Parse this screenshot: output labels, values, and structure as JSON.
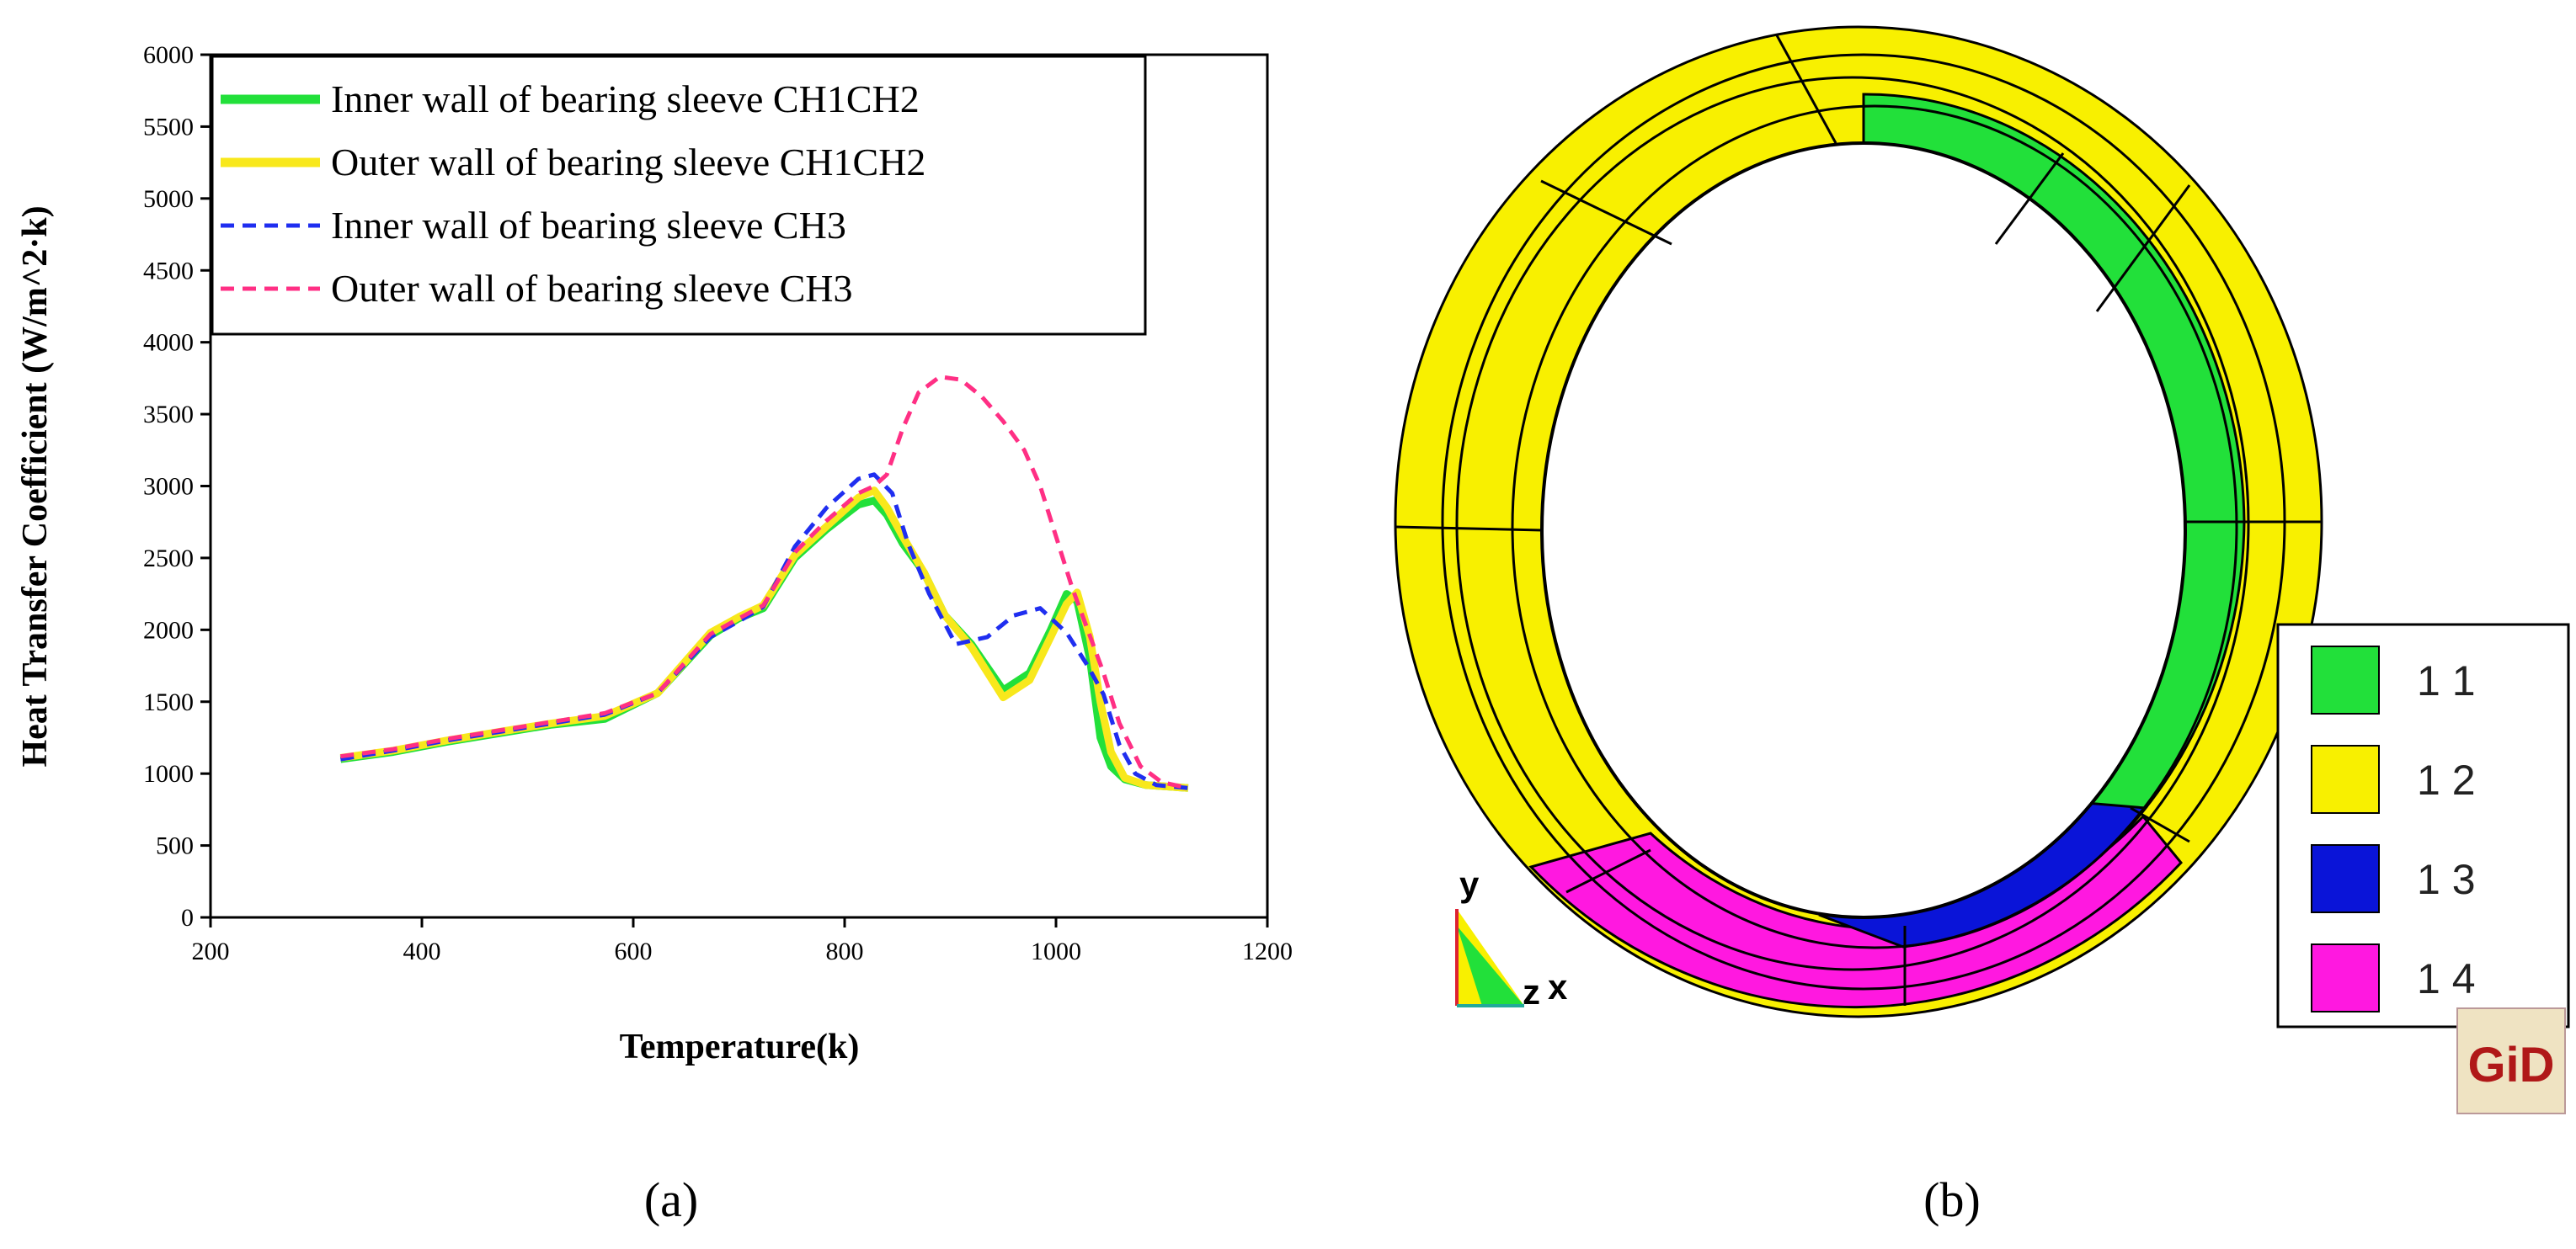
{
  "chart_data": [
    {
      "type": "line",
      "panel": "a",
      "xlabel": "Temperature(k)",
      "ylabel": "Heat Transfer Coefficient (W/m^2·k)",
      "xlim": [
        200,
        1200
      ],
      "ylim": [
        0,
        6000
      ],
      "xticks": [
        "200",
        "400",
        "600",
        "800",
        "1000",
        "1200"
      ],
      "yticks": [
        "0",
        "500",
        "1000",
        "1500",
        "2000",
        "2500",
        "3000",
        "3500",
        "4000",
        "4500",
        "5000",
        "5500",
        "6000"
      ],
      "legend_position": "top-left",
      "series": [
        {
          "name": "Inner wall of bearing sleeve CH1CH2",
          "color": "#22e03a",
          "style": "solid",
          "x": [
            323,
            373,
            423,
            473,
            523,
            573,
            623,
            673,
            700,
            723,
            753,
            783,
            813,
            828,
            840,
            855,
            875,
            895,
            920,
            950,
            975,
            995,
            1010,
            1020,
            1032,
            1042,
            1052,
            1065,
            1085,
            1105,
            1125
          ],
          "y": [
            1100,
            1150,
            1220,
            1280,
            1340,
            1380,
            1560,
            1960,
            2080,
            2150,
            2500,
            2700,
            2870,
            2900,
            2800,
            2600,
            2400,
            2100,
            1900,
            1580,
            1700,
            2000,
            2250,
            2200,
            1800,
            1250,
            1050,
            960,
            920,
            910,
            900
          ]
        },
        {
          "name": "Outer wall of bearing sleeve CH1CH2",
          "color": "#f8e81c",
          "style": "solid",
          "x": [
            323,
            373,
            423,
            473,
            523,
            573,
            623,
            673,
            700,
            723,
            753,
            783,
            813,
            828,
            840,
            855,
            875,
            895,
            920,
            950,
            975,
            995,
            1010,
            1020,
            1032,
            1042,
            1052,
            1065,
            1085,
            1105,
            1125
          ],
          "y": [
            1110,
            1160,
            1230,
            1290,
            1350,
            1400,
            1560,
            1980,
            2090,
            2170,
            2520,
            2720,
            2920,
            2970,
            2850,
            2650,
            2400,
            2100,
            1880,
            1530,
            1650,
            1950,
            2180,
            2260,
            1950,
            1500,
            1150,
            970,
            920,
            910,
            900
          ]
        },
        {
          "name": "Inner wall of bearing sleeve CH3",
          "color": "#1f2ef0",
          "style": "dashed",
          "x": [
            323,
            373,
            423,
            473,
            523,
            573,
            623,
            673,
            700,
            723,
            753,
            783,
            813,
            828,
            845,
            860,
            880,
            905,
            935,
            960,
            985,
            1010,
            1030,
            1045,
            1060,
            1075,
            1095,
            1125
          ],
          "y": [
            1100,
            1160,
            1230,
            1290,
            1350,
            1410,
            1560,
            1950,
            2060,
            2160,
            2580,
            2850,
            3050,
            3080,
            2950,
            2600,
            2250,
            1900,
            1950,
            2100,
            2150,
            1980,
            1750,
            1550,
            1200,
            1000,
            920,
            900
          ]
        },
        {
          "name": "Outer wall of bearing sleeve CH3",
          "color": "#ff2f84",
          "style": "dashed",
          "x": [
            323,
            373,
            423,
            473,
            523,
            573,
            623,
            673,
            700,
            723,
            753,
            783,
            813,
            828,
            840,
            855,
            870,
            890,
            910,
            930,
            950,
            970,
            985,
            1000,
            1015,
            1030,
            1045,
            1060,
            1080,
            1100,
            1125
          ],
          "y": [
            1120,
            1170,
            1240,
            1300,
            1360,
            1420,
            1560,
            1970,
            2080,
            2170,
            2540,
            2760,
            2950,
            3000,
            3080,
            3400,
            3650,
            3760,
            3740,
            3620,
            3450,
            3250,
            3000,
            2650,
            2300,
            2000,
            1700,
            1350,
            1050,
            940,
            900
          ]
        }
      ]
    }
  ],
  "figure": {
    "panel_a_label": "(a)",
    "panel_b_label": "(b)",
    "axes_triad": {
      "y": "y",
      "z": "z",
      "x": "x"
    },
    "ring_legend": [
      {
        "label": "1 1",
        "color": "#22e03a"
      },
      {
        "label": "1 2",
        "color": "#f8f000"
      },
      {
        "label": "1 3",
        "color": "#0a14d8"
      },
      {
        "label": "1 4",
        "color": "#ff18e0"
      }
    ],
    "logo_text": "GiD"
  }
}
